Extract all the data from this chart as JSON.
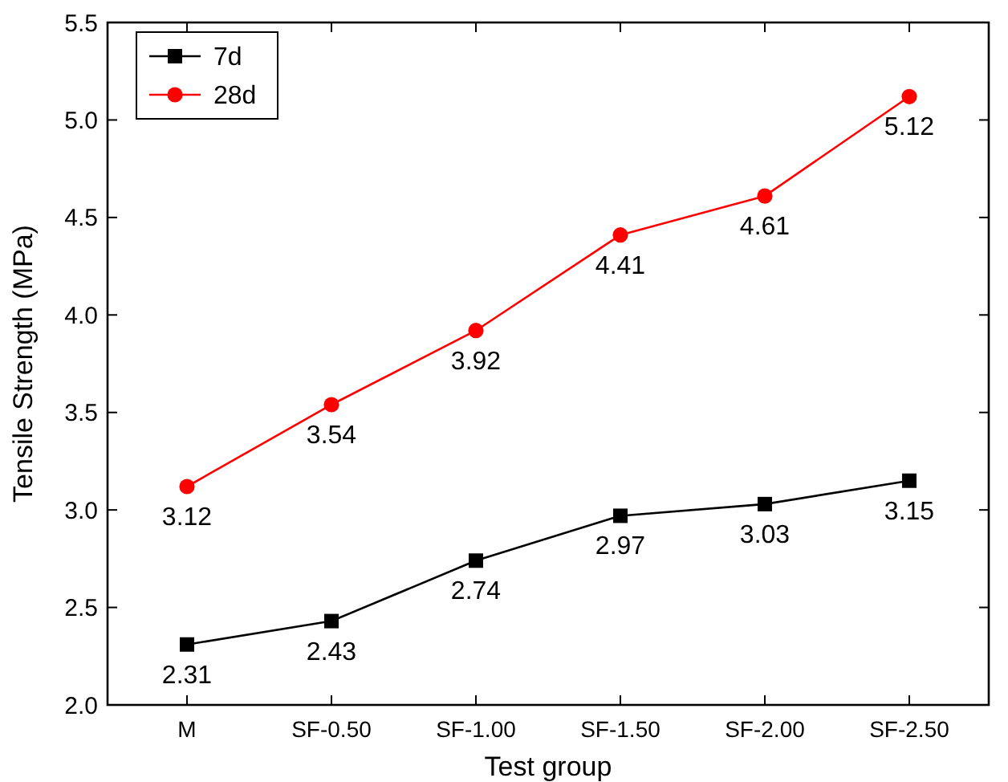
{
  "chart_data": {
    "type": "line",
    "xlabel": "Test group",
    "ylabel": "Tensile Strength (MPa)",
    "categories": [
      "M",
      "SF-0.50",
      "SF-1.00",
      "SF-1.50",
      "SF-2.00",
      "SF-2.50"
    ],
    "series": [
      {
        "name": "7d",
        "color": "#000000",
        "marker": "square",
        "values": [
          2.31,
          2.43,
          2.74,
          2.97,
          3.03,
          3.15
        ]
      },
      {
        "name": "28d",
        "color": "#ff0000",
        "marker": "circle",
        "values": [
          3.12,
          3.54,
          3.92,
          4.41,
          4.61,
          5.12
        ]
      }
    ],
    "ylim": [
      2.0,
      5.5
    ],
    "yticks": [
      {
        "value": 2,
        "label": "2.0"
      },
      {
        "value": 2.5,
        "label": "2.5"
      },
      {
        "value": 3,
        "label": "3.0"
      },
      {
        "value": 3.5,
        "label": "3.5"
      },
      {
        "value": 4,
        "label": "4.0"
      },
      {
        "value": 4.5,
        "label": "4.5"
      },
      {
        "value": 5,
        "label": "5.0"
      },
      {
        "value": 5.5,
        "label": "5.5"
      }
    ],
    "data_labels": true,
    "legend": "top left",
    "grid": false,
    "line_style": "solid"
  }
}
